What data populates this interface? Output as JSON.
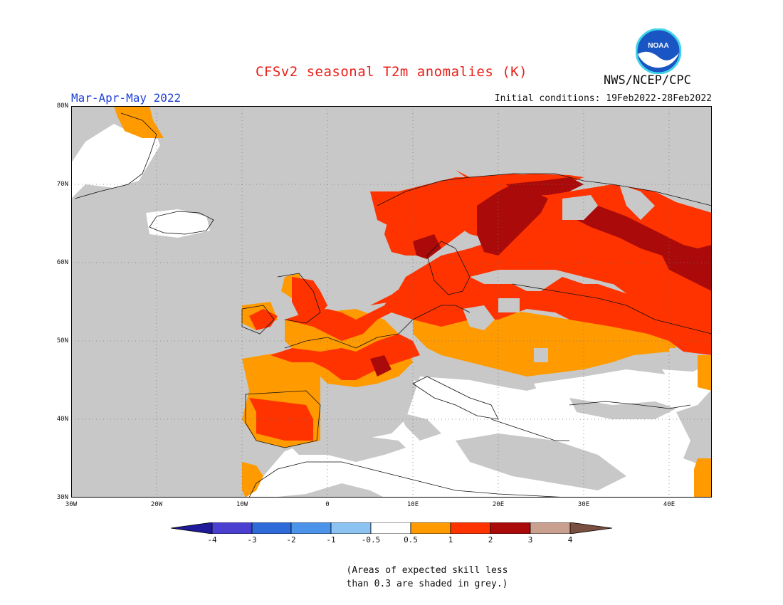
{
  "title": "CFSv2 seasonal T2m anomalies (K)",
  "season": "Mar-Apr-May 2022",
  "initial_conditions": "Initial conditions: 19Feb2022-28Feb2022",
  "agency": "NWS/NCEP/CPC",
  "logo_text": "NOAA",
  "map": {
    "lat_range": [
      30,
      80
    ],
    "lon_range": [
      -30,
      45
    ],
    "lat_ticks": [
      "80N",
      "70N",
      "60N",
      "50N",
      "40N",
      "30N"
    ],
    "lon_ticks": [
      "30W",
      "20W",
      "10W",
      "0",
      "10E",
      "20E",
      "30E",
      "40E"
    ],
    "gridlines": true,
    "background_color": "#c8c8c8"
  },
  "colorbar": {
    "labels": [
      "-4",
      "-3",
      "-2",
      "-1",
      "-0.5",
      "0.5",
      "1",
      "2",
      "3",
      "4"
    ],
    "colors": [
      "#1e1a9a",
      "#4a3fd0",
      "#2f6ad9",
      "#4b94ea",
      "#8cc3f2",
      "#ffffff",
      "#ff9a00",
      "#ff3300",
      "#aa0a0a",
      "#c9a090",
      "#7a4f3f"
    ]
  },
  "note_lines": [
    "(Areas of expected skill less",
    "than 0.3 are shaded in grey.)"
  ]
}
